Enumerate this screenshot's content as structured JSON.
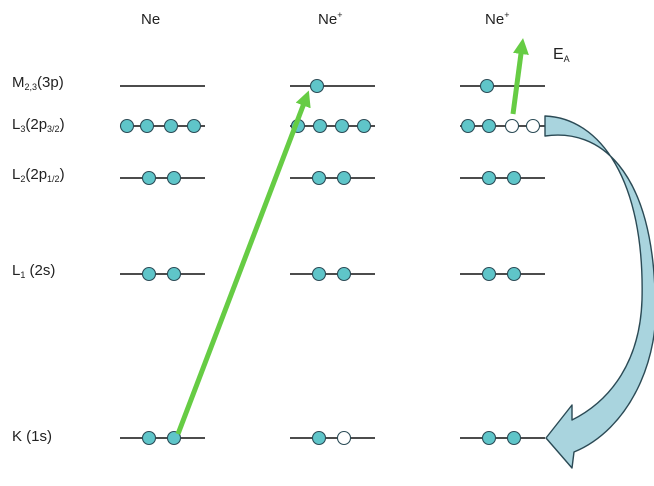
{
  "columns": [
    {
      "name": "Ne",
      "charge": ""
    },
    {
      "name": "Ne",
      "charge": "+"
    },
    {
      "name": "Ne",
      "charge": "+"
    }
  ],
  "levels": [
    {
      "main": "M",
      "sub": "2,3",
      "paren_before": "(3",
      "paren_sub": "",
      "paren_after": "p)"
    },
    {
      "main": "L",
      "sub": "3",
      "paren_before": "(2p",
      "paren_sub": "3/2",
      "paren_after": ")"
    },
    {
      "main": "L",
      "sub": "2",
      "paren_before": "(2p",
      "paren_sub": "1/2",
      "paren_after": ")"
    },
    {
      "main": "L",
      "sub": "1",
      "paren_before": " (2s)",
      "paren_sub": "",
      "paren_after": ""
    },
    {
      "main": "K",
      "sub": "",
      "paren_before": "  (1s)",
      "paren_sub": "",
      "paren_after": ""
    }
  ],
  "energy_label": {
    "main": "E",
    "sub": "A"
  },
  "colors": {
    "electron_fill": "#5fc5c9",
    "hole_fill": "#ffffff",
    "electron_stroke": "#2a4a55",
    "arrow_green": "#66cc44",
    "auger_arrow_fill": "#a9d4de",
    "auger_arrow_stroke": "#2b4a55",
    "line": "#111111"
  },
  "icons": {
    "electron": "filled-circle",
    "hole": "open-circle",
    "excitation_arrow": "green-arrow",
    "auger_arrow": "curved-arrow"
  }
}
